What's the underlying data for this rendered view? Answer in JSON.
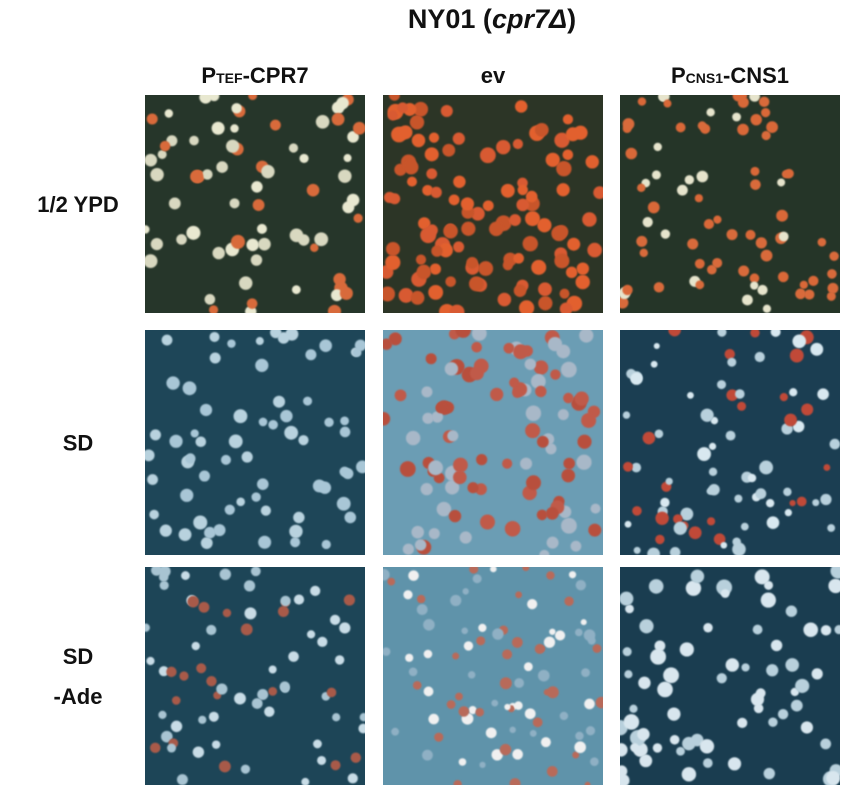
{
  "figure": {
    "title": {
      "main": "NY01 (",
      "italic": "cpr7Δ",
      "close": ")"
    },
    "columns": [
      {
        "prefix": "P",
        "sub": "TEF",
        "suffix": "-CPR7"
      },
      {
        "prefix": "ev"
      },
      {
        "prefix": "P",
        "sub": "CNS1",
        "suffix": "-CNS1"
      }
    ],
    "rows": [
      {
        "lines": [
          "1/2 YPD"
        ]
      },
      {
        "lines": [
          "SD"
        ]
      },
      {
        "lines": [
          "SD",
          "-Ade"
        ]
      }
    ]
  }
}
